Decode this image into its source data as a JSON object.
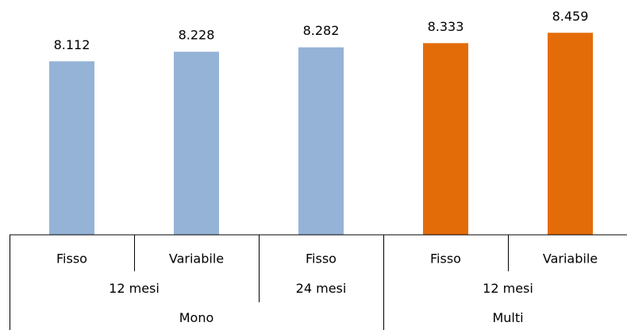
{
  "chart_data": {
    "type": "bar",
    "categories": [
      "Fisso",
      "Variabile",
      "Fisso",
      "Fisso",
      "Variabile"
    ],
    "category_levels": [
      [
        "12 mesi",
        null,
        "24 mesi",
        "12 mesi",
        null
      ],
      [
        "Mono",
        null,
        null,
        "Multi",
        null
      ]
    ],
    "values": [
      8.112,
      8.228,
      8.282,
      8.333,
      8.459
    ],
    "colors": [
      "#95b3d7",
      "#95b3d7",
      "#95b3d7",
      "#e36c09",
      "#e36c09"
    ],
    "ylim": [
      6,
      8.8
    ]
  }
}
